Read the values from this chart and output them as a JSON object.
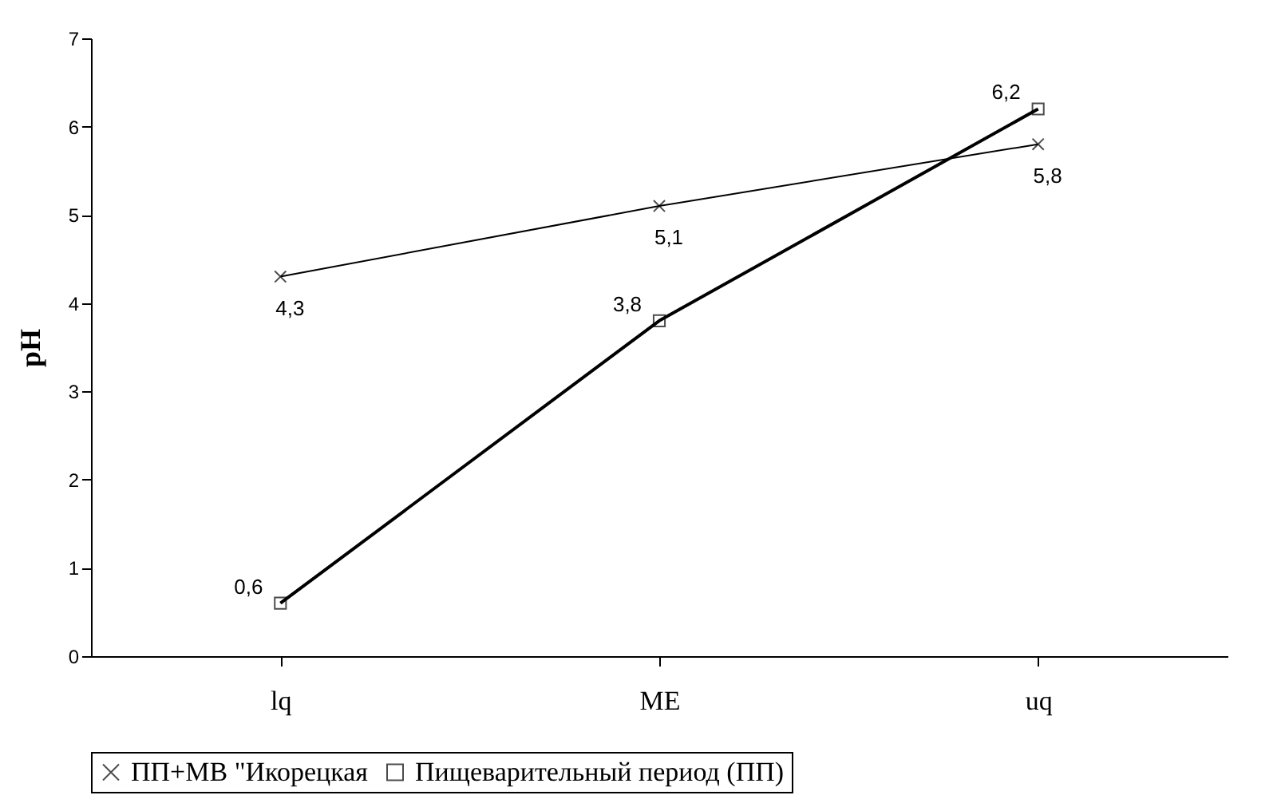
{
  "chart_data": {
    "type": "line",
    "ylabel": "pH",
    "categories": [
      "lq",
      "ME",
      "uq"
    ],
    "series": [
      {
        "name": "ПП+МВ \"Икорецкая",
        "color": "#000000",
        "marker": "cross",
        "values": [
          4.3,
          5.1,
          5.8
        ],
        "value_labels": [
          "4,3",
          "5,1",
          "5,8"
        ]
      },
      {
        "name": "Пищеварительный период (ПП)",
        "color": "#000000",
        "marker": "square",
        "values": [
          0.6,
          3.8,
          6.2
        ],
        "value_labels": [
          "0,6",
          "3,8",
          "6,2"
        ]
      }
    ],
    "ylim": [
      0,
      7
    ],
    "yticks": [
      0,
      1,
      2,
      3,
      4,
      5,
      6,
      7
    ],
    "grid": false,
    "legend": "bottom"
  }
}
